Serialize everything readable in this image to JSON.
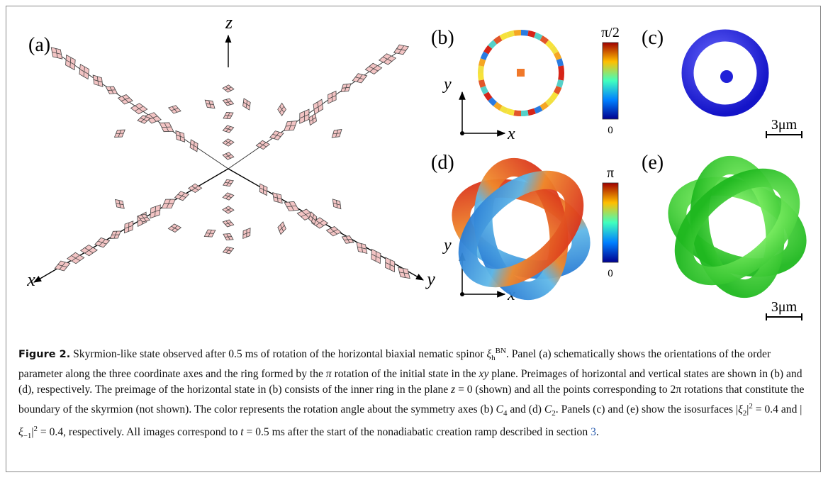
{
  "figure": {
    "panels": [
      {
        "label": "(a)",
        "axis_labels": [
          "z",
          "x",
          "y"
        ]
      },
      {
        "label": "(b)",
        "axis_labels": [
          "y",
          "x"
        ],
        "colorbar": [
          "π/2",
          "0"
        ]
      },
      {
        "label": "(c)",
        "scale_bar": "3μm"
      },
      {
        "label": "(d)",
        "axis_labels": [
          "y",
          "x"
        ],
        "colorbar": [
          "π",
          "0"
        ]
      },
      {
        "label": "(e)",
        "scale_bar": "3μm"
      }
    ],
    "caption": {
      "label": "Figure 2.",
      "segments": [
        {
          "text": " Skyrmion-like state observed after 0.5 ms of rotation of the horizontal biaxial nematic spinor "
        },
        {
          "text": "ξ",
          "style": "i"
        },
        {
          "text": "h",
          "style": "sub"
        },
        {
          "text": "BN",
          "style": "sup"
        },
        {
          "text": ". Panel (a) schematically shows the orientations of the order parameter along the three coordinate axes and the ring formed by the "
        },
        {
          "text": "π",
          "style": "i"
        },
        {
          "text": " rotation of the initial state in the "
        },
        {
          "text": "xy",
          "style": "i"
        },
        {
          "text": " plane. Preimages of horizontal and vertical states are shown in (b) and (d), respectively. The preimage of the horizontal state in (b) consists of the inner ring in the plane "
        },
        {
          "text": "z",
          "style": "i"
        },
        {
          "text": " = 0 (shown) and all the points corresponding to 2π rotations that constitute the boundary of the skyrmion (not shown). The color represents the rotation angle about the symmetry axes (b) "
        },
        {
          "text": "C",
          "style": "i"
        },
        {
          "text": "4",
          "style": "sub"
        },
        {
          "text": " and (d) "
        },
        {
          "text": "C",
          "style": "i"
        },
        {
          "text": "2",
          "style": "sub"
        },
        {
          "text": ". Panels (c) and (e) show the isosurfaces |"
        },
        {
          "text": "ξ",
          "style": "i"
        },
        {
          "text": "2",
          "style": "sub"
        },
        {
          "text": "|"
        },
        {
          "text": "2",
          "style": "sup"
        },
        {
          "text": " = 0.4 and |"
        },
        {
          "text": "ξ",
          "style": "i"
        },
        {
          "text": "−1",
          "style": "sub"
        },
        {
          "text": "|"
        },
        {
          "text": "2",
          "style": "sup"
        },
        {
          "text": " = 0.4, respectively. All images correspond to "
        },
        {
          "text": "t",
          "style": "i"
        },
        {
          "text": " = 0.5 ms after the start of the nonadiabatic creation ramp described in section "
        },
        {
          "text": "3",
          "style": "link"
        },
        {
          "text": "."
        }
      ]
    }
  }
}
